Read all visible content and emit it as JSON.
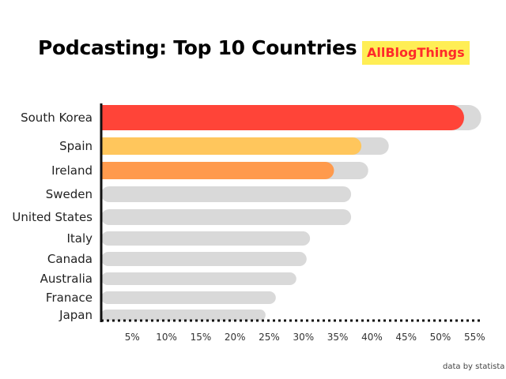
{
  "chart_data": {
    "type": "bar",
    "orientation": "horizontal",
    "title": "Podcasting: Top 10 Countries",
    "brand": "AllBlogThings",
    "source": "data by statista",
    "categories": [
      "South Korea",
      "Spain",
      "Ireland",
      "Sweden",
      "United States",
      "Italy",
      "Canada",
      "Australia",
      "Franace",
      "Japan"
    ],
    "values": [
      53,
      38,
      34,
      0,
      0,
      0,
      0,
      0,
      0,
      0
    ],
    "background_values": [
      55.5,
      42,
      39,
      36.5,
      36.5,
      30.5,
      30,
      28.5,
      25.5,
      24
    ],
    "highlight_colors": [
      "#ff4438",
      "#ffc65c",
      "#ff9a4d"
    ],
    "track_color": "#d9d9d9",
    "xlim": [
      0,
      55
    ],
    "xticks": [
      5,
      10,
      15,
      20,
      25,
      30,
      35,
      40,
      45,
      50,
      55
    ],
    "xtick_labels": [
      "5%",
      "10%",
      "15%",
      "20%",
      "25%",
      "30%",
      "35%",
      "40%",
      "45%",
      "50%",
      "55%"
    ],
    "xlabel": "",
    "ylabel": "",
    "grid": false
  }
}
